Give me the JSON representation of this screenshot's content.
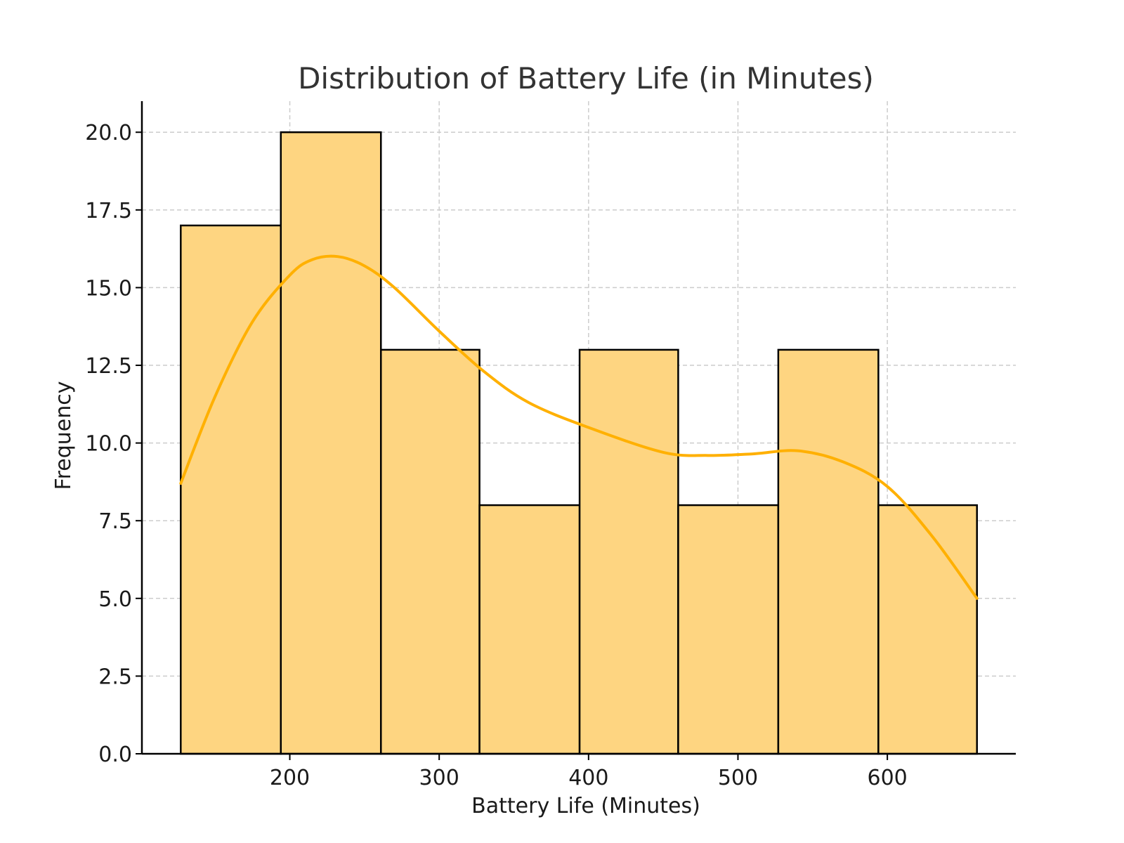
{
  "chart_data": {
    "type": "bar",
    "title": "Distribution of Battery Life (in Minutes)",
    "xlabel": "Battery Life (Minutes)",
    "ylabel": "Frequency",
    "bins": [
      {
        "start": 127,
        "end": 194,
        "count": 17
      },
      {
        "start": 194,
        "end": 261,
        "count": 20
      },
      {
        "start": 261,
        "end": 327,
        "count": 13
      },
      {
        "start": 327,
        "end": 394,
        "count": 8
      },
      {
        "start": 394,
        "end": 460,
        "count": 13
      },
      {
        "start": 460,
        "end": 527,
        "count": 8
      },
      {
        "start": 527,
        "end": 594,
        "count": 13
      },
      {
        "start": 594,
        "end": 660,
        "count": 8
      }
    ],
    "kde": {
      "x": [
        127,
        150,
        175,
        200,
        215,
        232,
        250,
        270,
        300,
        330,
        360,
        400,
        450,
        480,
        510,
        540,
        570,
        600,
        630,
        660
      ],
      "y": [
        8.7,
        11.5,
        13.9,
        15.4,
        15.9,
        16.0,
        15.7,
        15.0,
        13.6,
        12.3,
        11.3,
        10.5,
        9.7,
        9.6,
        9.65,
        9.75,
        9.4,
        8.6,
        7.0,
        5.0
      ]
    },
    "xlim": [
      101,
      686
    ],
    "ylim": [
      0,
      21
    ],
    "x_ticks": [
      200,
      300,
      400,
      500,
      600
    ],
    "x_tick_labels": [
      "200",
      "300",
      "400",
      "500",
      "600"
    ],
    "y_ticks": [
      0,
      2.5,
      5,
      7.5,
      10,
      12.5,
      15,
      17.5,
      20
    ],
    "y_tick_labels": [
      "0.0",
      "2.5",
      "5.0",
      "7.5",
      "10.0",
      "12.5",
      "15.0",
      "17.5",
      "20.0"
    ],
    "grid": true,
    "colors": {
      "bar_fill": "#FED581",
      "bar_edge": "#000000",
      "kde_line": "#FFB000",
      "grid": "#CCCCCC",
      "axis": "#000000"
    }
  }
}
